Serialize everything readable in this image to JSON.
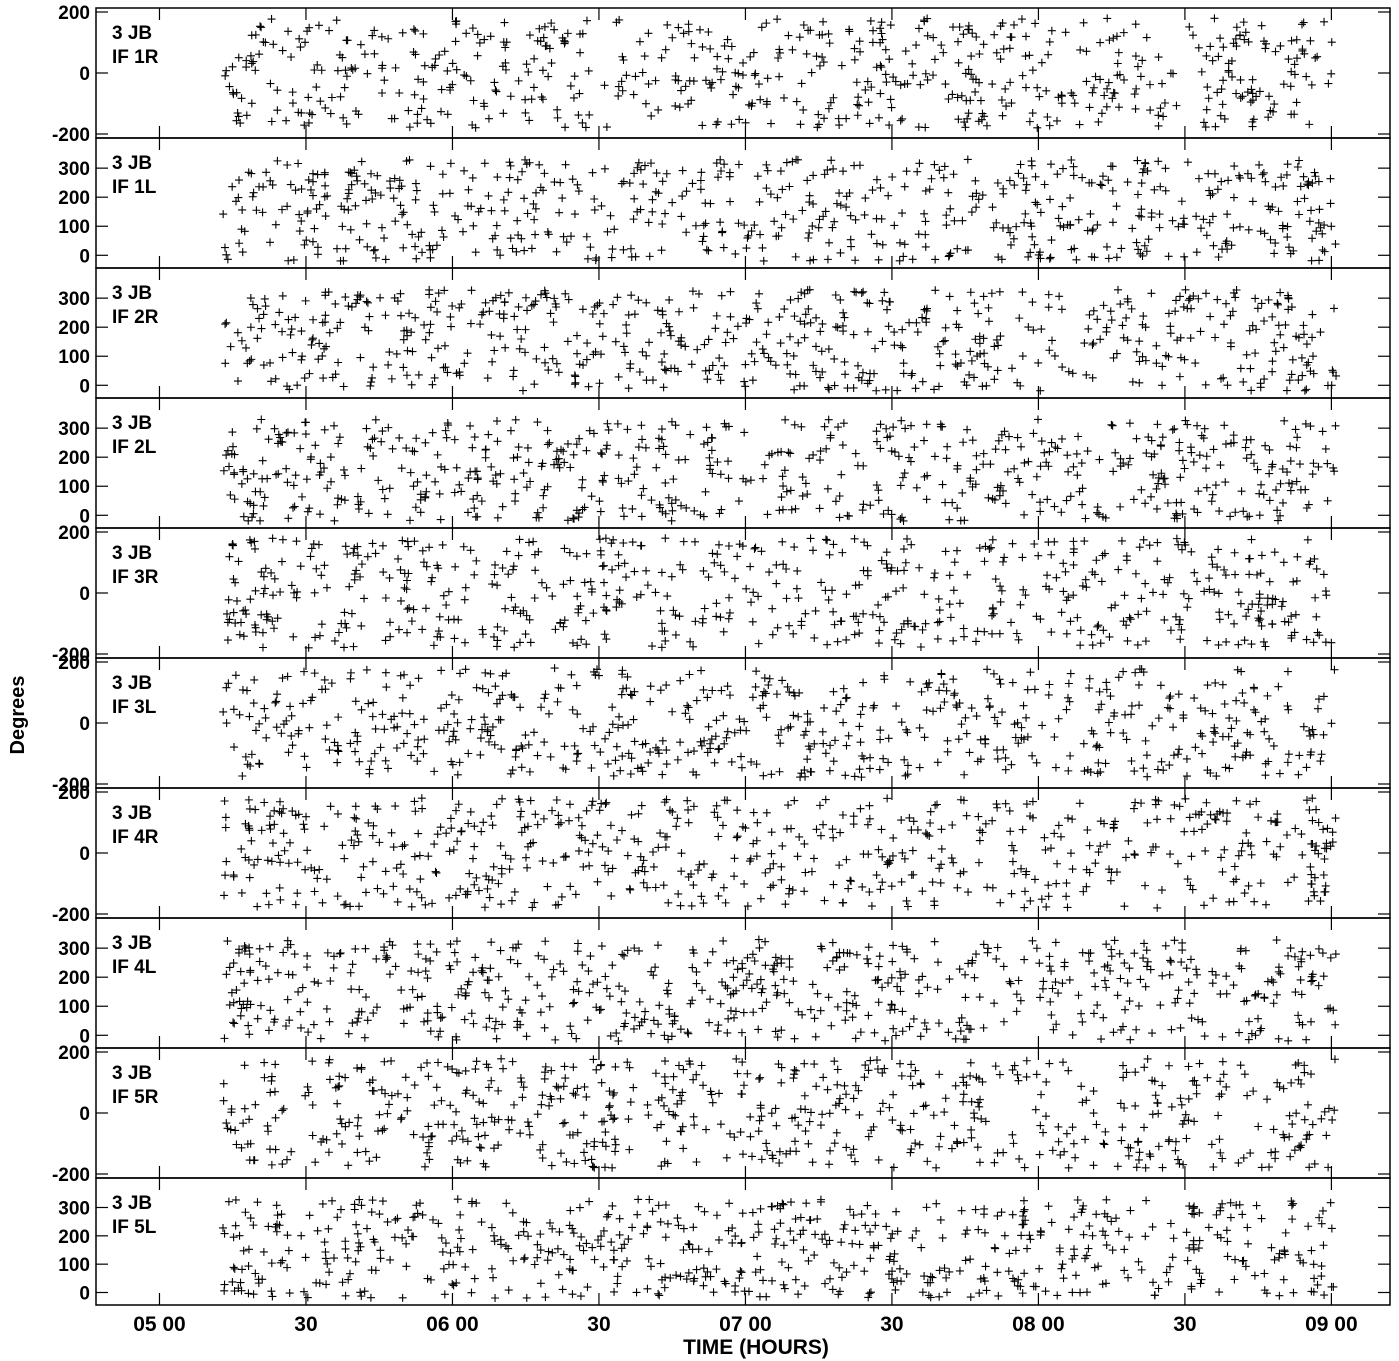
{
  "figure": {
    "ylabel": "Degrees",
    "xlabel": "TIME (HOURS)"
  },
  "chart_data": {
    "type": "scatter",
    "marker": "+",
    "x_axis": {
      "unit": "hours",
      "range": [
        "04:47",
        "09:12"
      ],
      "major_ticks": [
        "05:00",
        "05:30",
        "06:00",
        "06:30",
        "07:00",
        "07:30",
        "08:00",
        "08:30",
        "09:00"
      ],
      "tick_labels": [
        "05 00",
        "30",
        "06 00",
        "30",
        "07 00",
        "30",
        "08 00",
        "30",
        "09 00"
      ],
      "data_span": [
        "05:13",
        "09:01"
      ]
    },
    "panels": [
      {
        "station": "3 JB",
        "if_label": "IF 1R",
        "ylim": [
          -200,
          200
        ],
        "yticks": [
          -200,
          0,
          200
        ],
        "data_range": [
          -180,
          180
        ]
      },
      {
        "station": "3 JB",
        "if_label": "IF 1L",
        "ylim": [
          -30,
          390
        ],
        "yticks": [
          0,
          100,
          200,
          300
        ],
        "data_range": [
          -20,
          330
        ]
      },
      {
        "station": "3 JB",
        "if_label": "IF 2R",
        "ylim": [
          -30,
          390
        ],
        "yticks": [
          0,
          100,
          200,
          300
        ],
        "data_range": [
          -20,
          330
        ]
      },
      {
        "station": "3 JB",
        "if_label": "IF 2L",
        "ylim": [
          -30,
          390
        ],
        "yticks": [
          0,
          100,
          200,
          300
        ],
        "data_range": [
          -20,
          330
        ]
      },
      {
        "station": "3 JB",
        "if_label": "IF 3R",
        "ylim": [
          -200,
          200
        ],
        "yticks": [
          -200,
          0,
          200
        ],
        "data_range": [
          -180,
          180
        ]
      },
      {
        "station": "3 JB",
        "if_label": "IF 3L",
        "ylim": [
          -200,
          200
        ],
        "yticks": [
          -200,
          0,
          200
        ],
        "data_range": [
          -180,
          180
        ]
      },
      {
        "station": "3 JB",
        "if_label": "IF 4R",
        "ylim": [
          -200,
          200
        ],
        "yticks": [
          -200,
          0,
          200
        ],
        "data_range": [
          -180,
          180
        ]
      },
      {
        "station": "3 JB",
        "if_label": "IF 4L",
        "ylim": [
          -30,
          390
        ],
        "yticks": [
          0,
          100,
          200,
          300
        ],
        "data_range": [
          -20,
          330
        ]
      },
      {
        "station": "3 JB",
        "if_label": "IF 5R",
        "ylim": [
          -200,
          200
        ],
        "yticks": [
          -200,
          0,
          200
        ],
        "data_range": [
          -180,
          180
        ]
      },
      {
        "station": "3 JB",
        "if_label": "IF 5L",
        "ylim": [
          -30,
          390
        ],
        "yticks": [
          0,
          100,
          200,
          300
        ],
        "data_range": [
          -20,
          330
        ]
      }
    ]
  }
}
